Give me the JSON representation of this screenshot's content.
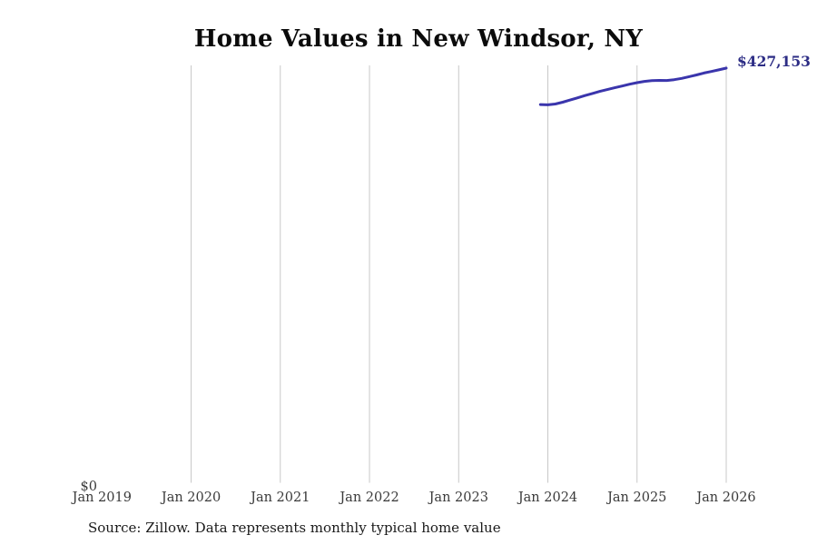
{
  "chart": {
    "title": "Home Values in New Windsor, NY",
    "end_label": "$427,153",
    "source": "Source: Zillow. Data represents monthly typical home value",
    "colors": {
      "line": "#3a35ac",
      "end_label": "#2d2d85",
      "gridline": "#c8c8c8",
      "tick_text": "#3a3a3a",
      "title_text": "#0b0b0b",
      "background": "#ffffff"
    }
  },
  "chart_data": {
    "type": "line",
    "title": "Home Values in New Windsor, NY",
    "xlabel": "",
    "ylabel": "",
    "x_ticks": [
      "Jan 2019",
      "Jan 2020",
      "Jan 2021",
      "Jan 2022",
      "Jan 2023",
      "Jan 2024",
      "Jan 2025",
      "Jan 2026"
    ],
    "y_zero_label": "$0",
    "ylim": [
      0,
      430000
    ],
    "grid": "vertical-only, no gridline at first tick",
    "legend": "none",
    "annotation": "$427,153 at end of line",
    "last_value": 427153,
    "series": [
      {
        "name": "Monthly typical home value",
        "months_offset_from_first_tick": 59,
        "months": [
          "Dec 2023",
          "Jan 2024",
          "Feb 2024",
          "Mar 2024",
          "Apr 2024",
          "May 2024",
          "Jun 2024",
          "Jul 2024",
          "Aug 2024",
          "Sep 2024",
          "Oct 2024",
          "Nov 2024",
          "Dec 2024",
          "Jan 2025",
          "Feb 2025",
          "Mar 2025",
          "Apr 2025",
          "May 2025",
          "Jun 2025",
          "Jul 2025",
          "Aug 2025",
          "Sep 2025",
          "Oct 2025",
          "Nov 2025",
          "Dec 2025",
          "Jan 2026"
        ],
        "values": [
          389700,
          389400,
          390200,
          392100,
          394300,
          396600,
          398900,
          401100,
          403200,
          405100,
          407000,
          408800,
          410600,
          412200,
          413500,
          414300,
          414600,
          414500,
          415300,
          416600,
          418400,
          420200,
          422100,
          423700,
          425400,
          427153
        ]
      }
    ]
  }
}
